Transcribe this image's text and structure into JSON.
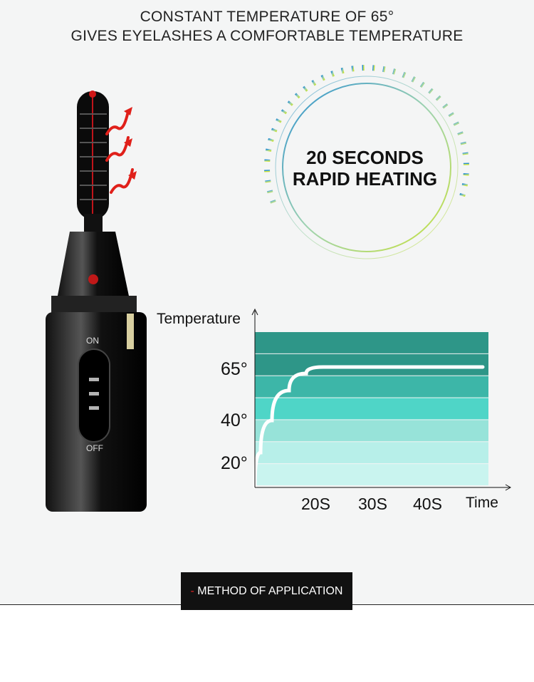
{
  "headline": {
    "line1": "CONSTANT TEMPERATURE OF 65°",
    "line2": "GIVES EYELASHES A COMFORTABLE TEMPERATURE"
  },
  "ring": {
    "line1": "20 SECONDS",
    "line2": "RAPID HEATING"
  },
  "device": {
    "on_label": "ON",
    "off_label": "OFF"
  },
  "chart_data": {
    "type": "line",
    "ylabel": "Temperature",
    "xlabel": "Time",
    "y_ticks": [
      "65°",
      "40°",
      "20°"
    ],
    "x_ticks": [
      "20S",
      "30S",
      "40S"
    ],
    "series": [
      {
        "points": [
          [
            9,
            9
          ],
          [
            10,
            25
          ],
          [
            12,
            40
          ],
          [
            15,
            54
          ],
          [
            18,
            62
          ],
          [
            21,
            65
          ],
          [
            25,
            65
          ],
          [
            49,
            65
          ]
        ]
      }
    ],
    "band_colors": [
      "#2e9688",
      "#2e9688",
      "#3db6a8",
      "#4fd5c7",
      "#97e3d9",
      "#b7efe9",
      "#c9f4ef"
    ],
    "line_color": "#ffffff"
  },
  "footer": {
    "dash": "-",
    "method_label": "METHOD OF APPLICATION"
  }
}
